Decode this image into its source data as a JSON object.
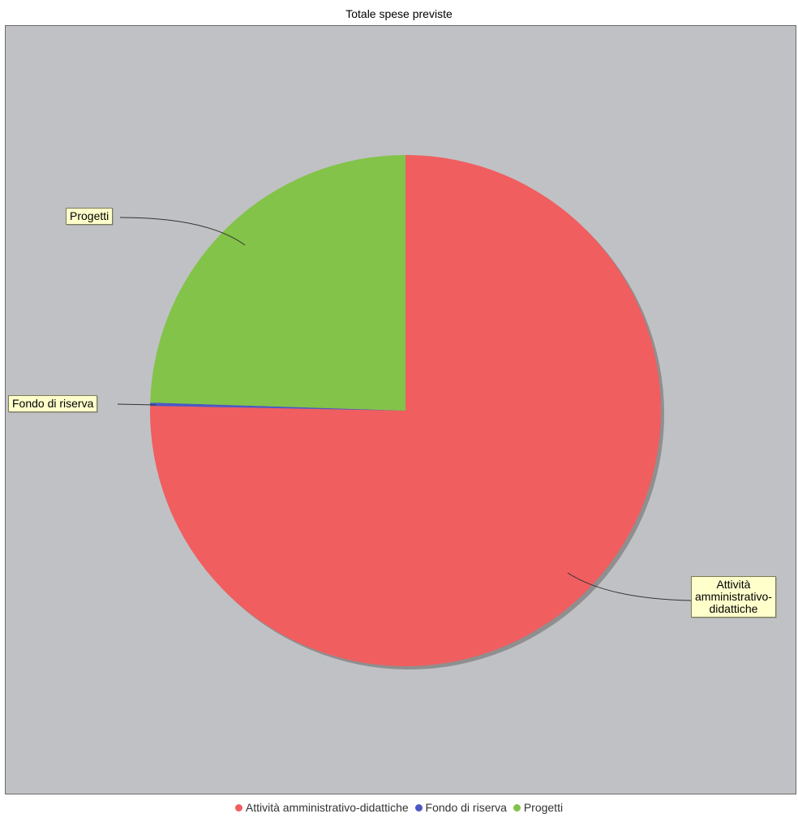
{
  "chart_data": {
    "type": "pie",
    "title": "Totale spese previste",
    "slices": [
      {
        "name": "Attività amministrativo-didattiche",
        "label": "Attività\namministrativo-\ndidattiche",
        "value": 75.3,
        "color": "#f05e60"
      },
      {
        "name": "Fondo di riserva",
        "label": "Fondo di riserva",
        "value": 0.2,
        "color": "#4c58c4"
      },
      {
        "name": "Progetti",
        "label": "Progetti",
        "value": 24.5,
        "color": "#83c349"
      }
    ],
    "legend_position": "bottom",
    "background_color": "#c0c1c4"
  }
}
